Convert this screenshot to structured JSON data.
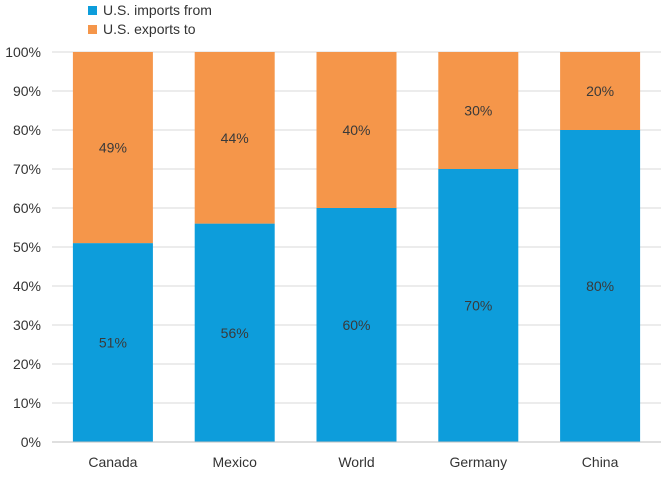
{
  "chart_data": {
    "type": "bar",
    "stacked": true,
    "categories": [
      "Canada",
      "Mexico",
      "World",
      "Germany",
      "China"
    ],
    "series": [
      {
        "name": "U.S. imports from",
        "color": "#0d9ddb",
        "values": [
          51,
          56,
          60,
          70,
          80
        ],
        "labels": [
          "51%",
          "56%",
          "60%",
          "70%",
          "80%"
        ]
      },
      {
        "name": "U.S. exports to",
        "color": "#f5964a",
        "values": [
          49,
          44,
          40,
          30,
          20
        ],
        "labels": [
          "49%",
          "44%",
          "40%",
          "30%",
          "20%"
        ]
      }
    ],
    "ylim": [
      0,
      100
    ],
    "yticks": [
      "0%",
      "10%",
      "20%",
      "30%",
      "40%",
      "50%",
      "60%",
      "70%",
      "80%",
      "90%",
      "100%"
    ],
    "grid": true,
    "legend_position": "top-left"
  }
}
